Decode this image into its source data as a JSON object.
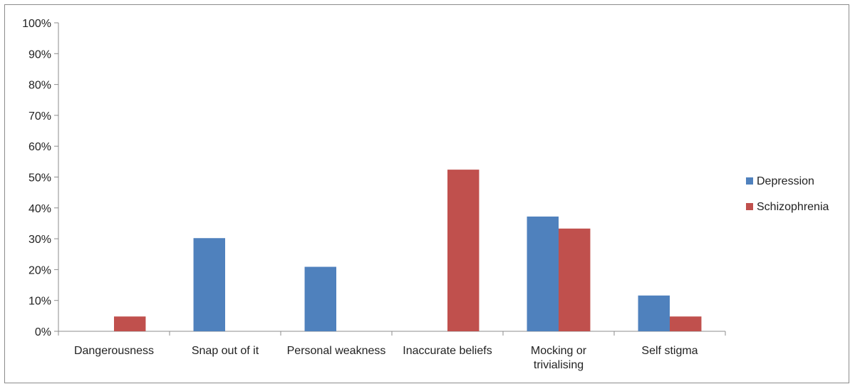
{
  "chart_data": {
    "type": "bar",
    "title": "",
    "xlabel": "",
    "ylabel": "",
    "ylim": [
      0,
      100
    ],
    "y_ticks": [
      "0%",
      "10%",
      "20%",
      "30%",
      "40%",
      "50%",
      "60%",
      "70%",
      "80%",
      "90%",
      "100%"
    ],
    "y_tick_values": [
      0,
      10,
      20,
      30,
      40,
      50,
      60,
      70,
      80,
      90,
      100
    ],
    "categories": [
      [
        "Dangerousness"
      ],
      [
        "Snap out of it"
      ],
      [
        "Personal weakness"
      ],
      [
        "Inaccurate beliefs"
      ],
      [
        "Mocking or",
        "trivialising"
      ],
      [
        "Self stigma"
      ]
    ],
    "series": [
      {
        "name": "Depression",
        "color": "#4f81bd",
        "values": [
          0,
          30.2,
          20.9,
          0,
          37.2,
          11.6
        ]
      },
      {
        "name": "Schizophrenia",
        "color": "#c0504d",
        "values": [
          4.8,
          0,
          0,
          52.4,
          33.3,
          4.8
        ]
      }
    ],
    "grid": false,
    "legend_position": "right"
  }
}
